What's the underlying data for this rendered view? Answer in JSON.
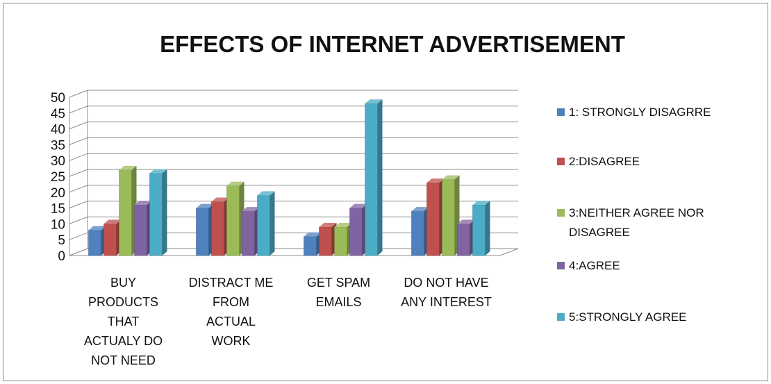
{
  "chart_data": {
    "type": "bar",
    "style": "3d-clustered-column",
    "title": "EFFECTS OF INTERNET ADVERTISEMENT",
    "xlabel": "",
    "ylabel": "",
    "ylim": [
      0,
      50
    ],
    "yticks": [
      0,
      5,
      10,
      15,
      20,
      25,
      30,
      35,
      40,
      45,
      50
    ],
    "grid": true,
    "legend_position": "right",
    "categories": [
      [
        "BUY",
        "PRODUCTS",
        "THAT",
        "ACTUALY DO",
        "NOT NEED"
      ],
      [
        "DISTRACT ME",
        "FROM",
        "ACTUAL",
        "WORK"
      ],
      [
        "GET SPAM",
        "EMAILS"
      ],
      [
        "DO NOT HAVE",
        "ANY INTEREST"
      ]
    ],
    "series": [
      {
        "name": "1: STRONGLY DISAGRRE",
        "legend_lines": [
          "1: STRONGLY DISAGRRE"
        ],
        "color": "#4F81BD",
        "values": [
          8,
          15,
          6,
          14
        ]
      },
      {
        "name": "2:DISAGREE",
        "legend_lines": [
          "2:DISAGREE"
        ],
        "color": "#C0504D",
        "values": [
          10,
          17,
          9,
          23
        ]
      },
      {
        "name": "3:NEITHER AGREE NOR DISAGREE",
        "legend_lines": [
          "3:NEITHER AGREE NOR",
          "DISAGREE"
        ],
        "color": "#9BBB59",
        "values": [
          27,
          22,
          9,
          24
        ]
      },
      {
        "name": "4:AGREE",
        "legend_lines": [
          "4:AGREE"
        ],
        "color": "#8064A2",
        "values": [
          16,
          14,
          15,
          10
        ]
      },
      {
        "name": "5:STRONGLY AGREE",
        "legend_lines": [
          "5:STRONGLY AGREE"
        ],
        "color": "#4BACC6",
        "values": [
          26,
          19,
          48,
          16
        ]
      }
    ]
  }
}
